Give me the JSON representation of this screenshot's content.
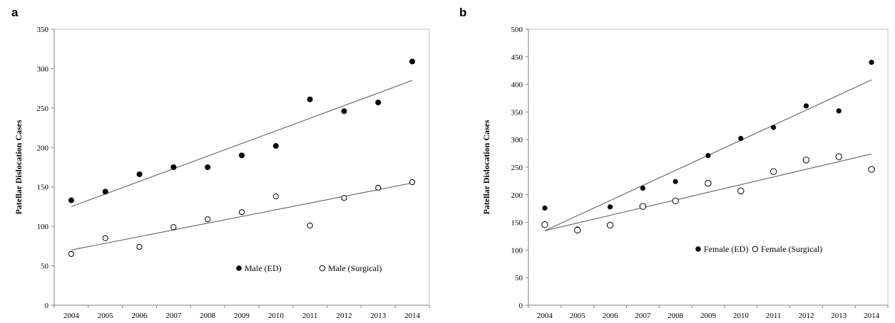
{
  "chart_data": [
    {
      "panel": "a",
      "type": "scatter",
      "ylabel": "Patellar Dislocation Cases",
      "ylim": [
        0,
        350
      ],
      "yticks": [
        0,
        50,
        100,
        150,
        200,
        250,
        300,
        350
      ],
      "categories": [
        "2004",
        "2005",
        "2006",
        "2007",
        "2008",
        "2009",
        "2010",
        "2011",
        "2012",
        "2013",
        "2014"
      ],
      "legend_placement": "lower-right",
      "series": [
        {
          "name": "Male (ED)",
          "marker": "filled",
          "values": [
            133,
            144,
            166,
            175,
            175,
            190,
            202,
            261,
            246,
            257,
            309
          ],
          "trend": [
            125,
            285
          ]
        },
        {
          "name": "Male (Surgical)",
          "marker": "open",
          "values": [
            65,
            85,
            74,
            99,
            109,
            118,
            138,
            101,
            136,
            149,
            156
          ],
          "trend": [
            70,
            155
          ]
        }
      ]
    },
    {
      "panel": "b",
      "type": "scatter",
      "ylabel": "Patellar Dislocation Cases",
      "ylim": [
        0,
        500
      ],
      "yticks": [
        0,
        50,
        100,
        150,
        200,
        250,
        300,
        350,
        400,
        450,
        500
      ],
      "categories": [
        "2004",
        "2005",
        "2006",
        "2007",
        "2008",
        "2009",
        "2010",
        "2011",
        "2012",
        "2013",
        "2014"
      ],
      "legend_placement": "lower-right",
      "series": [
        {
          "name": "Female (ED)",
          "marker": "filled",
          "values": [
            176,
            138,
            178,
            212,
            224,
            271,
            302,
            322,
            361,
            352,
            440
          ],
          "trend": [
            135,
            408
          ]
        },
        {
          "name": "Female (Surgical)",
          "marker": "open",
          "values": [
            146,
            136,
            145,
            179,
            189,
            221,
            207,
            242,
            263,
            269,
            246
          ],
          "trend": [
            135,
            274
          ]
        }
      ]
    }
  ]
}
